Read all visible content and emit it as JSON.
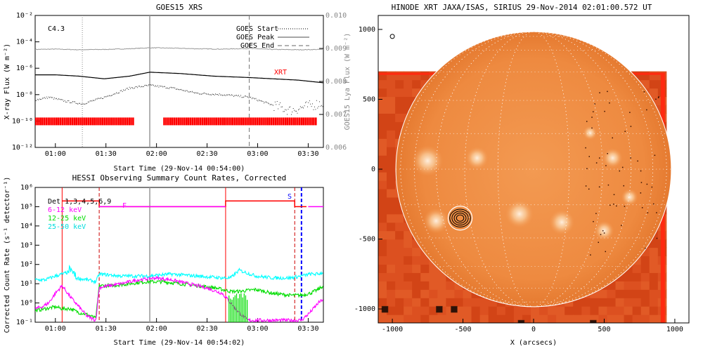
{
  "chart_data": [
    {
      "type": "line",
      "title": "GOES15 XRS",
      "xlabel": "Start Time (29-Nov-14 00:54:00)",
      "ylabel": "X-ray Flux (W m⁻²)",
      "y2label": "GOES15 Lya Flux (W m⁻²)",
      "xlim_min": [
        54,
        225
      ],
      "ylim_log10": [
        -12,
        -2
      ],
      "y2lim": [
        0.006,
        0.01
      ],
      "x_ticks": [
        {
          "m": 66,
          "label": "01:00"
        },
        {
          "m": 96,
          "label": "01:30"
        },
        {
          "m": 126,
          "label": "02:00"
        },
        {
          "m": 156,
          "label": "02:30"
        },
        {
          "m": 186,
          "label": "03:00"
        },
        {
          "m": 216,
          "label": "03:30"
        }
      ],
      "y_ticks": [
        {
          "v": -2,
          "label": "10⁻²"
        },
        {
          "v": -4,
          "label": "10⁻⁴"
        },
        {
          "v": -6,
          "label": "10⁻⁶"
        },
        {
          "v": -8,
          "label": "10⁻⁸"
        },
        {
          "v": -10,
          "label": "10⁻¹⁰"
        },
        {
          "v": -12,
          "label": "10⁻¹²"
        }
      ],
      "y2_ticks": [
        {
          "v": 0.01,
          "label": "0.010"
        },
        {
          "v": 0.009,
          "label": "0.009"
        },
        {
          "v": 0.008,
          "label": "0.008"
        },
        {
          "v": 0.007,
          "label": "0.007"
        },
        {
          "v": 0.006,
          "label": "0.006"
        }
      ],
      "class_label": "C4.3",
      "xrt_label": "XRT",
      "legend": [
        "GOES Start",
        "GOES Peak",
        "GOES End"
      ],
      "markers_min": {
        "start": 82,
        "peak": 122,
        "end": 181
      },
      "series": [
        {
          "role": "lya",
          "color": "#999999",
          "x": [
            54,
            66,
            80,
            95,
            110,
            122,
            135,
            150,
            165,
            181,
            195,
            210,
            225
          ],
          "y": [
            0.00897,
            0.00898,
            0.00896,
            0.00897,
            0.00899,
            0.00902,
            0.00901,
            0.00899,
            0.00898,
            0.009,
            0.00897,
            0.00896,
            0.00897
          ]
        },
        {
          "role": "goes_long",
          "color": "#000000",
          "x": [
            54,
            66,
            80,
            95,
            110,
            122,
            140,
            160,
            180,
            195,
            210,
            225
          ],
          "y": [
            -6.5,
            -6.5,
            -6.6,
            -6.8,
            -6.6,
            -6.3,
            -6.4,
            -6.6,
            -6.7,
            -6.8,
            -6.9,
            -7.1
          ]
        },
        {
          "role": "goes_short",
          "color": "#000000",
          "x": [
            54,
            62,
            72,
            82,
            95,
            110,
            122,
            135,
            150,
            165,
            181,
            195,
            205,
            215,
            225
          ],
          "y": [
            -8.4,
            -8.2,
            -8.5,
            -8.7,
            -8.2,
            -7.5,
            -7.3,
            -7.5,
            -7.9,
            -8.0,
            -8.2,
            -8.8,
            -9.2,
            -8.9,
            -8.6
          ]
        }
      ],
      "xrt_intervals_min": [
        [
          54,
          112
        ],
        [
          130,
          221
        ]
      ]
    },
    {
      "type": "line",
      "title": "HESSI Observing Summary Count Rates, Corrected",
      "xlabel": "Start Time (29-Nov-14 00:54:02)",
      "ylabel": "Corrected Count Rate (s⁻¹ detector⁻¹)",
      "xlim_min": [
        54,
        225
      ],
      "ylim_log10": [
        -1,
        6
      ],
      "x_ticks": [
        {
          "m": 66,
          "label": "01:00"
        },
        {
          "m": 96,
          "label": "01:30"
        },
        {
          "m": 126,
          "label": "02:00"
        },
        {
          "m": 156,
          "label": "02:30"
        },
        {
          "m": 186,
          "label": "03:00"
        },
        {
          "m": 216,
          "label": "03:30"
        }
      ],
      "y_ticks": [
        {
          "v": 6,
          "label": "10⁶"
        },
        {
          "v": 5,
          "label": "10⁵"
        },
        {
          "v": 4,
          "label": "10⁴"
        },
        {
          "v": 3,
          "label": "10³"
        },
        {
          "v": 2,
          "label": "10²"
        },
        {
          "v": 1,
          "label": "10¹"
        },
        {
          "v": 0,
          "label": "10⁰"
        },
        {
          "v": -1,
          "label": "10⁻¹"
        }
      ],
      "legend_title": "Det 1,3,4,5,6,9",
      "flag_F": "F",
      "flag_S": "S",
      "series": [
        {
          "name": "6-12 keV",
          "color": "#ff00ff",
          "x": [
            54,
            58,
            62,
            66,
            70,
            75,
            80,
            85,
            90,
            92,
            105,
            115,
            125,
            135,
            145,
            155,
            165,
            170,
            175,
            180,
            186,
            195,
            205,
            212,
            217,
            222,
            225
          ],
          "y": [
            -0.3,
            -0.2,
            0.0,
            0.5,
            0.9,
            0.3,
            -0.2,
            -0.7,
            -0.9,
            0.8,
            1.0,
            1.2,
            1.3,
            1.2,
            1.0,
            0.8,
            0.5,
            0.0,
            -0.5,
            -0.9,
            -0.9,
            -0.9,
            -0.9,
            -0.9,
            -0.5,
            0.0,
            0.2
          ]
        },
        {
          "name": "12-25 keV",
          "color": "#00dd00",
          "x": [
            54,
            60,
            66,
            70,
            75,
            80,
            85,
            90,
            92,
            100,
            110,
            120,
            130,
            140,
            150,
            160,
            170,
            175,
            185,
            195,
            205,
            212,
            217,
            222,
            225
          ],
          "y": [
            -0.4,
            -0.3,
            -0.2,
            -0.3,
            -0.3,
            -0.5,
            -0.6,
            -0.8,
            0.9,
            0.9,
            1.0,
            1.1,
            1.1,
            1.0,
            0.9,
            0.8,
            0.6,
            0.6,
            0.7,
            0.5,
            0.4,
            0.4,
            0.5,
            0.7,
            0.9
          ]
        },
        {
          "name": "25-50 keV",
          "color": "#00ffff",
          "x": [
            54,
            60,
            66,
            70,
            74,
            78,
            85,
            90,
            92,
            105,
            120,
            135,
            150,
            165,
            170,
            175,
            185,
            195,
            205,
            212,
            217,
            222,
            225
          ],
          "y": [
            1.2,
            1.2,
            1.4,
            1.5,
            1.6,
            1.3,
            1.2,
            1.1,
            1.5,
            1.4,
            1.4,
            1.5,
            1.4,
            1.3,
            1.3,
            1.7,
            1.4,
            1.3,
            1.3,
            1.4,
            1.5,
            1.5,
            1.6
          ]
        },
        {
          "name": "",
          "color": "#ff0000",
          "x": [
            70,
            92,
            167,
            208
          ],
          "y": [
            5.3,
            5.0,
            5.3,
            5.0
          ]
        }
      ],
      "attenuator_lines_min": [
        70,
        92,
        167,
        208
      ],
      "saa_line_min": 212,
      "goes_peak_min": 122
    },
    {
      "type": "heatmap",
      "title": "HINODE XRT JAXA/ISAS, SIRIUS 29-Nov-2014 02:01:00.572 UT",
      "xlabel": "X (arcsecs)",
      "ylabel": "",
      "xlim": [
        -1100,
        1100
      ],
      "ylim": [
        -1100,
        1100
      ],
      "x_ticks": [
        {
          "v": -1000,
          "label": "-1000"
        },
        {
          "v": -500,
          "label": "-500"
        },
        {
          "v": 0,
          "label": "0"
        },
        {
          "v": 500,
          "label": "500"
        },
        {
          "v": 1000,
          "label": "1000"
        }
      ],
      "y_ticks": [
        {
          "v": 1000,
          "label": "1000"
        },
        {
          "v": 500,
          "label": "500"
        },
        {
          "v": 0,
          "label": "0"
        },
        {
          "v": -500,
          "label": "-500"
        },
        {
          "v": -1000,
          "label": "-1000"
        }
      ],
      "image_extent": [
        [
          -1100,
          930
        ],
        [
          -1100,
          690
        ]
      ],
      "solar_radius_arcsec": 975,
      "contour_center": [
        -520,
        -350
      ],
      "contour_radii_arcsec": [
        25,
        40,
        55,
        70
      ],
      "outer_circle_radius_arcsec": 85,
      "bright_regions": [
        [
          -690,
          -370,
          90
        ],
        [
          -750,
          60,
          110
        ],
        [
          -400,
          80,
          80
        ],
        [
          400,
          260,
          50
        ],
        [
          560,
          80,
          70
        ],
        [
          680,
          -200,
          60
        ],
        [
          -100,
          -320,
          100
        ],
        [
          200,
          -380,
          90
        ],
        [
          500,
          -440,
          70
        ]
      ],
      "icon_marker": [
        -1000,
        950
      ]
    }
  ]
}
